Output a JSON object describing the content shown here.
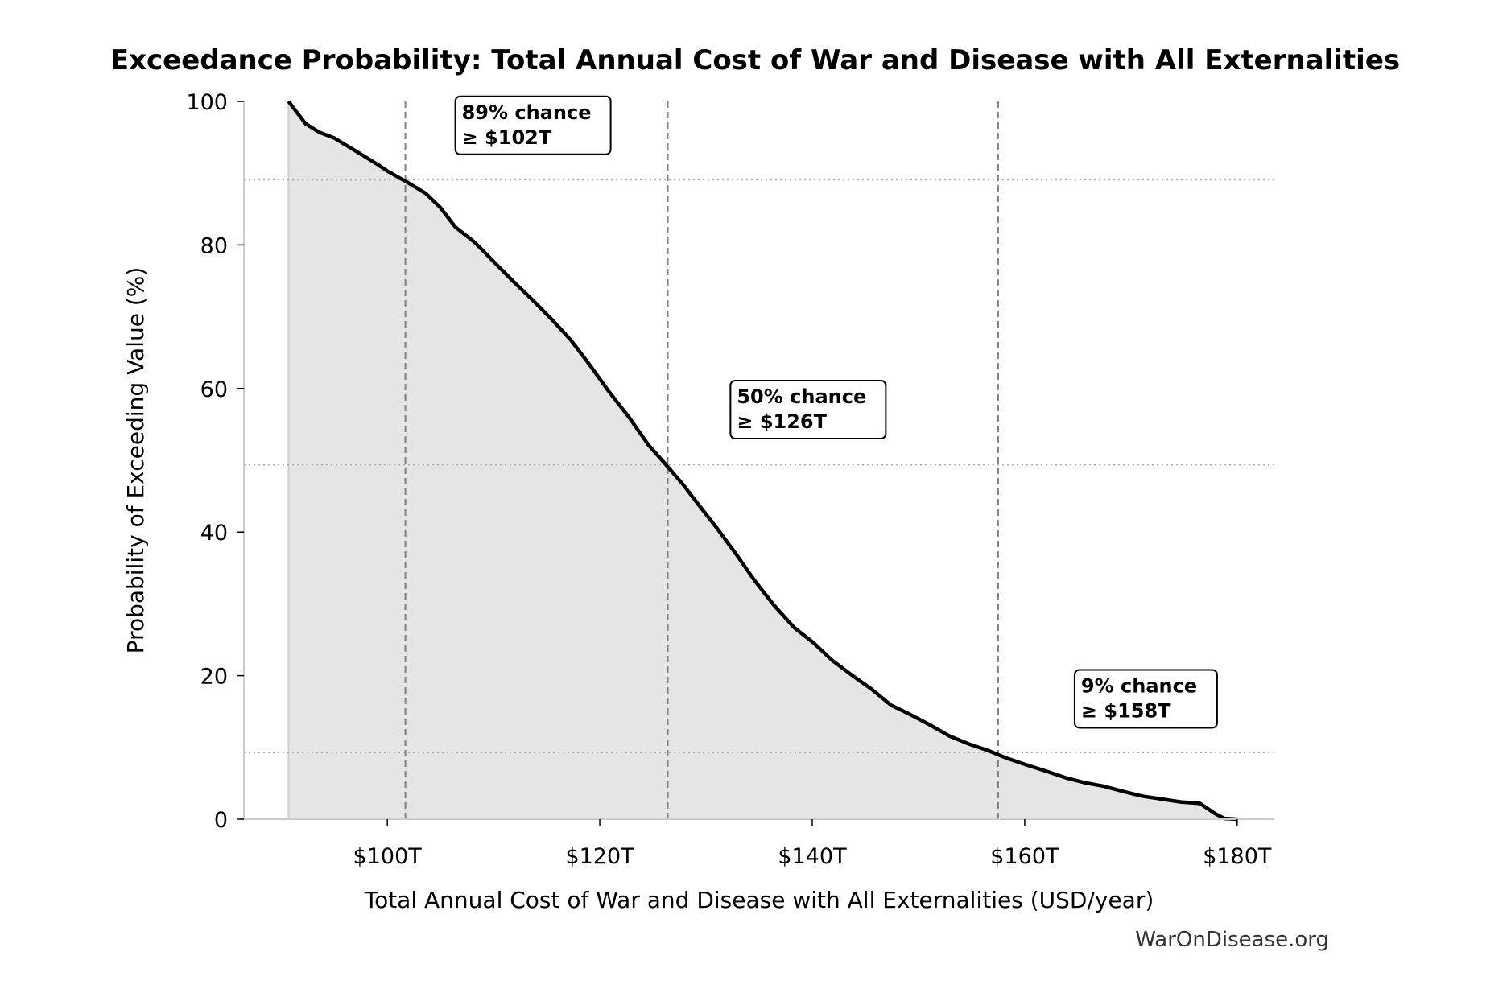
{
  "chart_data": {
    "type": "area",
    "title": "Exceedance Probability: Total Annual Cost of War and Disease with All Externalities",
    "xlabel": "Total Annual Cost of War and Disease with All Externalities (USD/year)",
    "ylabel": "Probability of Exceeding Value (%)",
    "xlim": [
      86.5,
      183.5
    ],
    "ylim": [
      0,
      100
    ],
    "x_unit": "trillion USD",
    "x_ticks": [
      100,
      120,
      140,
      160,
      180
    ],
    "x_tick_labels": [
      "$100T",
      "$120T",
      "$140T",
      "$160T",
      "$180T"
    ],
    "y_ticks": [
      0,
      20,
      40,
      60,
      80,
      100
    ],
    "y_tick_labels": [
      "0",
      "20",
      "40",
      "60",
      "80",
      "100"
    ],
    "grid": false,
    "colors": {
      "line": "#000000",
      "fill": "#e5e5e5",
      "reference": "#808080",
      "spine": "#cccccc"
    },
    "series": [
      {
        "x": [
          90.7,
          92.3,
          93.6,
          95.0,
          96.8,
          99.1,
          100,
          101.8,
          103.6,
          105,
          106.4,
          108.2,
          110,
          111.8,
          113.7,
          115.5,
          117.3,
          119.1,
          120.9,
          122.8,
          124.6,
          126.4,
          127.8,
          129.2,
          131,
          132.8,
          134.6,
          136.4,
          138.3,
          140.1,
          141.9,
          143.7,
          145.6,
          147.4,
          149.2,
          151,
          152.9,
          154.7,
          156.5,
          158.3,
          160.1,
          162,
          163.8,
          165.6,
          167.4,
          169.2,
          171.1,
          172.9,
          174.7,
          176.5,
          177.9,
          178.8,
          180
        ],
        "y": [
          100,
          96.9,
          95.7,
          94.9,
          93.3,
          91.2,
          90.3,
          88.8,
          87.2,
          85.2,
          82.5,
          80.4,
          77.7,
          75,
          72.3,
          69.6,
          66.7,
          63.2,
          59.5,
          55.9,
          52.1,
          49.1,
          46.7,
          44,
          40.6,
          37,
          33.2,
          29.8,
          26.7,
          24.6,
          22.1,
          20.1,
          18.1,
          15.9,
          14.6,
          13.2,
          11.6,
          10.5,
          9.6,
          8.5,
          7.6,
          6.7,
          5.8,
          5.1,
          4.6,
          3.9,
          3.2,
          2.8,
          2.4,
          2.2,
          0.8,
          0.1,
          0
        ]
      }
    ],
    "reference_lines": [
      {
        "x": 101.7,
        "y": 89.1
      },
      {
        "x": 126.4,
        "y": 49.4
      },
      {
        "x": 157.5,
        "y": 9.3
      }
    ],
    "annotations": [
      {
        "line1": "89% chance",
        "line2": "≥ $102T",
        "x": 106.4,
        "y": 100.7
      },
      {
        "line1": "50% chance",
        "line2": "≥ $126T",
        "x": 132.3,
        "y": 61.1
      },
      {
        "line1": "9% chance",
        "line2": "≥ $158T",
        "x": 164.7,
        "y": 20.8
      }
    ]
  },
  "footer": "WarOnDisease.org"
}
